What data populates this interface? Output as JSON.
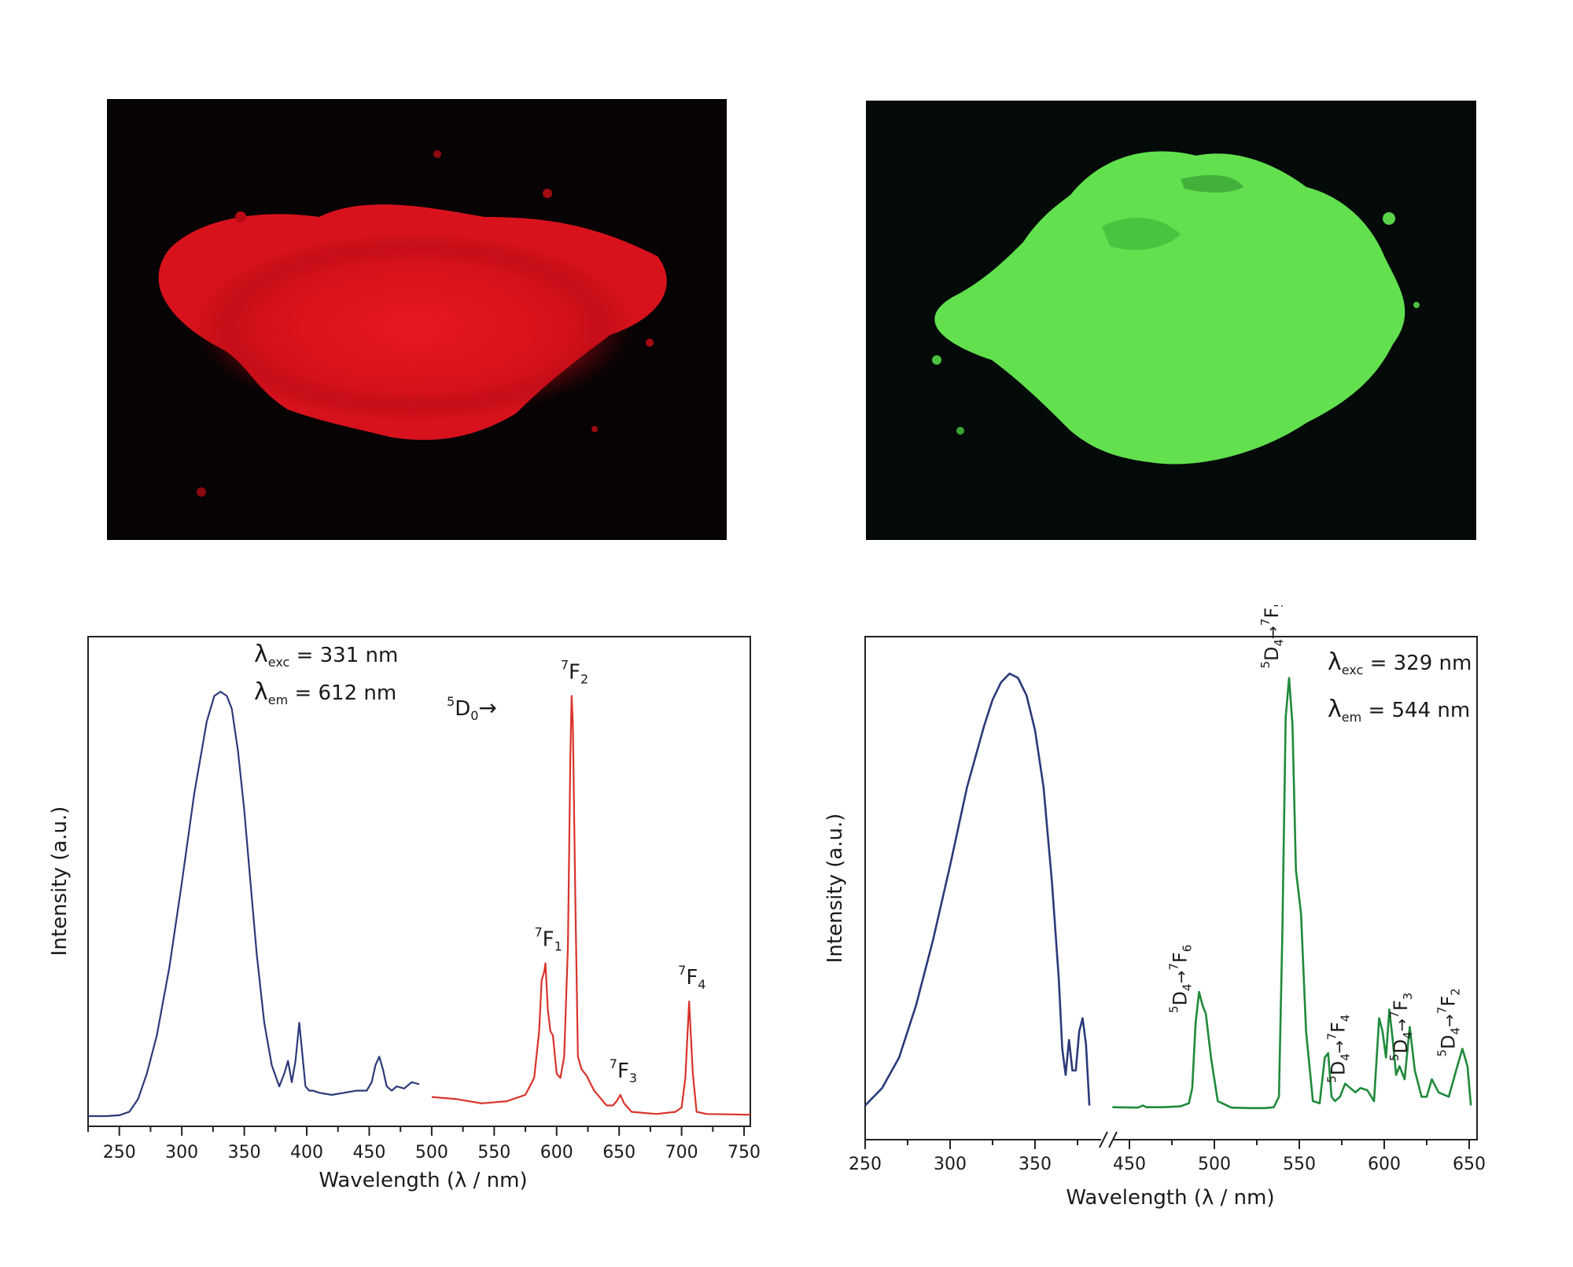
{
  "photos": [
    {
      "subject": "red luminescent powder under UV light",
      "color": "#e0101a"
    },
    {
      "subject": "green luminescent powder under UV light",
      "color": "#5ee84a"
    }
  ],
  "colors": {
    "excitation": "#2b3a7a",
    "eu_emission": "#d9332b",
    "tb_emission": "#1f8a3a"
  },
  "chart_data": [
    {
      "type": "line",
      "xlabel": "Wavelength (λ / nm)",
      "ylabel": "Intensity (a.u.)",
      "xlim": [
        225,
        755
      ],
      "xticks": [
        250,
        300,
        350,
        400,
        450,
        500,
        550,
        600,
        650,
        700,
        750
      ],
      "ylim": [
        0,
        1
      ],
      "annotations": {
        "exc": {
          "symbol": "λ",
          "sub": "exc",
          "text": " = 331 nm"
        },
        "em": {
          "symbol": "λ",
          "sub": "em",
          "text": " = 612 nm"
        },
        "transition_origin": {
          "sup": "5",
          "main": "D",
          "sub": "0",
          "arrow": "→"
        },
        "peaks": [
          {
            "sup": "7",
            "main": "F",
            "sub": "1",
            "x": 591
          },
          {
            "sup": "7",
            "main": "F",
            "sub": "2",
            "x": 612
          },
          {
            "sup": "7",
            "main": "F",
            "sub": "3",
            "x": 651
          },
          {
            "sup": "7",
            "main": "F",
            "sub": "4",
            "x": 706
          }
        ]
      },
      "series": [
        {
          "role": "excitation",
          "color": "#2b3a7a",
          "x": [
            225,
            240,
            250,
            258,
            265,
            272,
            280,
            290,
            300,
            310,
            320,
            326,
            331,
            336,
            340,
            345,
            350,
            355,
            360,
            366,
            372,
            378,
            382,
            385,
            388,
            391,
            394,
            396,
            399,
            402,
            405,
            410,
            420,
            430,
            440,
            448,
            452,
            455,
            458,
            461,
            464,
            468,
            472,
            478,
            484,
            490
          ],
          "y": [
            0,
            0,
            0.002,
            0.01,
            0.04,
            0.1,
            0.19,
            0.35,
            0.55,
            0.76,
            0.93,
            0.99,
            1.0,
            0.99,
            0.96,
            0.86,
            0.72,
            0.55,
            0.38,
            0.22,
            0.12,
            0.07,
            0.1,
            0.13,
            0.08,
            0.13,
            0.22,
            0.16,
            0.07,
            0.06,
            0.06,
            0.055,
            0.05,
            0.055,
            0.06,
            0.06,
            0.08,
            0.12,
            0.14,
            0.11,
            0.07,
            0.06,
            0.07,
            0.065,
            0.08,
            0.075
          ]
        },
        {
          "role": "emission",
          "color": "#d9332b",
          "x": [
            500,
            520,
            540,
            560,
            575,
            582,
            586,
            588,
            590,
            591,
            593,
            595,
            597,
            600,
            603,
            606,
            609,
            611,
            612,
            613,
            615,
            617,
            620,
            624,
            630,
            640,
            645,
            648,
            651,
            654,
            660,
            680,
            695,
            700,
            703,
            706,
            709,
            712,
            720,
            740,
            755
          ],
          "y": [
            0.045,
            0.04,
            0.03,
            0.035,
            0.05,
            0.09,
            0.2,
            0.32,
            0.34,
            0.36,
            0.25,
            0.2,
            0.19,
            0.1,
            0.09,
            0.14,
            0.4,
            0.85,
            0.99,
            0.92,
            0.5,
            0.14,
            0.11,
            0.095,
            0.06,
            0.025,
            0.025,
            0.035,
            0.05,
            0.03,
            0.01,
            0.005,
            0.01,
            0.02,
            0.09,
            0.27,
            0.1,
            0.01,
            0.005,
            0.004,
            0.003
          ]
        }
      ]
    },
    {
      "type": "line",
      "xlabel": "Wavelength (λ / nm)",
      "ylabel": "Intensity (a.u.)",
      "xticks": [
        250,
        300,
        350,
        450,
        500,
        550,
        600,
        650
      ],
      "axis_break": "between 380 and 440",
      "ylim": [
        0,
        1
      ],
      "annotations": {
        "exc": {
          "symbol": "λ",
          "sub": "exc",
          "text": " = 329 nm"
        },
        "em": {
          "symbol": "λ",
          "sub": "em",
          "text": " = 544 nm"
        },
        "transitions": [
          {
            "sup1": "5",
            "main1": "D",
            "sub1": "4",
            "arrow": "→",
            "sup2": "7",
            "main2": "F",
            "sub2": "6",
            "x": 490
          },
          {
            "sup1": "5",
            "main1": "D",
            "sub1": "4",
            "arrow": "→",
            "sup2": "7",
            "main2": "F",
            "sub2": "5",
            "x": 544
          },
          {
            "sup1": "5",
            "main1": "D",
            "sub1": "4",
            "arrow": "→",
            "sup2": "7",
            "main2": "F",
            "sub2": "4",
            "x": 583
          },
          {
            "sup1": "5",
            "main1": "D",
            "sub1": "4",
            "arrow": "→",
            "sup2": "7",
            "main2": "F",
            "sub2": "3",
            "x": 620
          },
          {
            "sup1": "5",
            "main1": "D",
            "sub1": "4",
            "arrow": "→",
            "sup2": "7",
            "main2": "F",
            "sub2": "2",
            "x": 648
          }
        ]
      },
      "series": [
        {
          "role": "excitation",
          "color": "#2b3a7a",
          "x": [
            250,
            260,
            270,
            280,
            290,
            300,
            310,
            320,
            325,
            330,
            335,
            340,
            345,
            350,
            355,
            360,
            364,
            366,
            368,
            370,
            372,
            374,
            376,
            378,
            380,
            382
          ],
          "y": [
            0.01,
            0.05,
            0.12,
            0.24,
            0.39,
            0.56,
            0.74,
            0.88,
            0.94,
            0.98,
            1.0,
            0.99,
            0.95,
            0.87,
            0.74,
            0.52,
            0.3,
            0.14,
            0.08,
            0.16,
            0.09,
            0.09,
            0.18,
            0.21,
            0.15,
            0.01
          ]
        },
        {
          "role": "emission",
          "color": "#1f8a3a",
          "x": [
            440,
            455,
            458,
            460,
            470,
            480,
            485,
            487,
            489,
            491,
            493,
            495,
            498,
            502,
            510,
            520,
            530,
            535,
            538,
            540,
            542,
            544,
            546,
            548,
            551,
            554,
            558,
            562,
            565,
            567,
            569,
            571,
            574,
            577,
            580,
            583,
            586,
            590,
            594,
            597,
            599,
            601,
            603,
            605,
            607,
            609,
            612,
            615,
            618,
            622,
            625,
            628,
            632,
            638,
            643,
            646,
            649,
            651
          ],
          "y": [
            0.006,
            0.005,
            0.01,
            0.006,
            0.006,
            0.008,
            0.015,
            0.05,
            0.2,
            0.27,
            0.24,
            0.22,
            0.12,
            0.02,
            0.005,
            0.004,
            0.004,
            0.006,
            0.03,
            0.4,
            0.9,
            0.99,
            0.88,
            0.55,
            0.45,
            0.18,
            0.02,
            0.015,
            0.12,
            0.13,
            0.03,
            0.02,
            0.03,
            0.06,
            0.05,
            0.04,
            0.05,
            0.045,
            0.02,
            0.21,
            0.18,
            0.12,
            0.23,
            0.16,
            0.08,
            0.1,
            0.07,
            0.19,
            0.09,
            0.03,
            0.03,
            0.07,
            0.04,
            0.03,
            0.1,
            0.14,
            0.1,
            0.01
          ]
        }
      ]
    }
  ]
}
